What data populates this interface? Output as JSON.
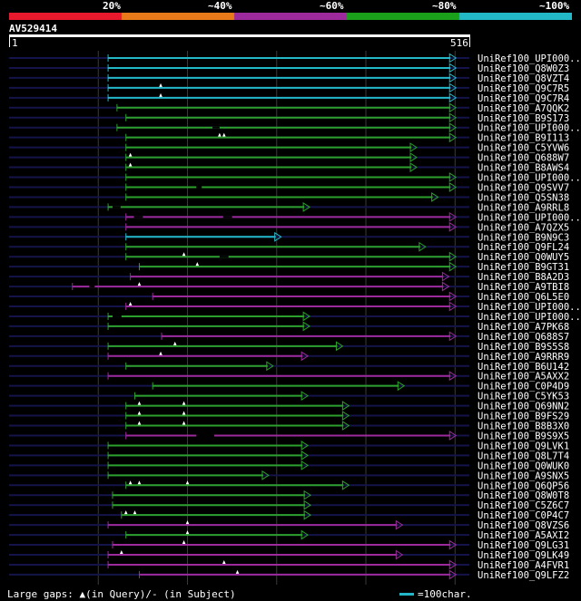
{
  "legend": {
    "colors": [
      "#e8192c",
      "#e87a1a",
      "#9c2a9c",
      "#1aa01a",
      "#22b8c8"
    ],
    "labels": [
      "20%",
      "~40%",
      "~60%",
      "~80%",
      "~100%"
    ]
  },
  "query": {
    "title": "AV529414",
    "start": "1",
    "end": "516",
    "length": 516
  },
  "colors": {
    "green": "#2ca02c",
    "purple": "#9c2a9c",
    "cyan": "#22b8c8",
    "bg_line": "#14144a"
  },
  "hits": [
    {
      "label": "UniRef100_UPI000..",
      "start": 111,
      "end": 501,
      "color": "cyan",
      "gaps": []
    },
    {
      "label": "UniRef100_Q8W0Z3",
      "start": 111,
      "end": 501,
      "color": "cyan",
      "gaps": []
    },
    {
      "label": "UniRef100_Q8VZT4",
      "start": 111,
      "end": 501,
      "color": "cyan",
      "gaps": []
    },
    {
      "label": "UniRef100_Q9C7R5",
      "start": 111,
      "end": 501,
      "color": "cyan",
      "gaps": [],
      "marks": [
        170
      ]
    },
    {
      "label": "UniRef100_Q9C7R4",
      "start": 111,
      "end": 501,
      "color": "cyan",
      "gaps": [],
      "marks": [
        170
      ]
    },
    {
      "label": "UniRef100_A7QQK2",
      "start": 121,
      "end": 501,
      "color": "green",
      "gaps": []
    },
    {
      "label": "UniRef100_B9S173",
      "start": 131,
      "end": 501,
      "color": "green",
      "gaps": []
    },
    {
      "label": "UniRef100_UPI000..",
      "start": 121,
      "end": 501,
      "color": "green",
      "gaps": [
        [
          228,
          236
        ]
      ]
    },
    {
      "label": "UniRef100_B9I113",
      "start": 131,
      "end": 501,
      "color": "green",
      "gaps": [],
      "marks": [
        236,
        241
      ]
    },
    {
      "label": "UniRef100_C5YVW6",
      "start": 131,
      "end": 457,
      "color": "green",
      "gaps": []
    },
    {
      "label": "UniRef100_Q688W7",
      "start": 131,
      "end": 457,
      "color": "green",
      "gaps": [],
      "marks": [
        136
      ]
    },
    {
      "label": "UniRef100_B8AWS4",
      "start": 131,
      "end": 457,
      "color": "green",
      "gaps": [],
      "marks": [
        136
      ]
    },
    {
      "label": "UniRef100_UPI000..",
      "start": 131,
      "end": 501,
      "color": "green",
      "gaps": []
    },
    {
      "label": "UniRef100_Q9SVV7",
      "start": 131,
      "end": 501,
      "color": "green",
      "gaps": [
        [
          210,
          216
        ]
      ]
    },
    {
      "label": "UniRef100_Q5SN38",
      "start": 131,
      "end": 481,
      "color": "green",
      "gaps": []
    },
    {
      "label": "UniRef100_A9RRL8",
      "start": 111,
      "end": 337,
      "color": "green",
      "gaps": [
        [
          116,
          125
        ]
      ]
    },
    {
      "label": "UniRef100_UPI000..",
      "start": 131,
      "end": 501,
      "color": "purple",
      "gaps": [
        [
          140,
          150
        ],
        [
          240,
          250
        ]
      ]
    },
    {
      "label": "UniRef100_A7QZX5",
      "start": 131,
      "end": 501,
      "color": "purple",
      "gaps": []
    },
    {
      "label": "UniRef100_B9N9C3",
      "start": 131,
      "end": 305,
      "color": "cyan",
      "gaps": []
    },
    {
      "label": "UniRef100_Q9FL24",
      "start": 131,
      "end": 467,
      "color": "green",
      "gaps": []
    },
    {
      "label": "UniRef100_Q0WUY5",
      "start": 131,
      "end": 501,
      "color": "green",
      "gaps": [
        [
          236,
          246
        ]
      ],
      "marks": [
        196
      ]
    },
    {
      "label": "UniRef100_B9GT31",
      "start": 146,
      "end": 501,
      "color": "green",
      "gaps": [],
      "marks": [
        211
      ]
    },
    {
      "label": "UniRef100_B8A2D3",
      "start": 136,
      "end": 493,
      "color": "purple",
      "gaps": []
    },
    {
      "label": "UniRef100_A9TBI8",
      "start": 71,
      "end": 493,
      "color": "purple",
      "gaps": [
        [
          90,
          96
        ]
      ],
      "marks": [
        146
      ]
    },
    {
      "label": "UniRef100_Q6L5E0",
      "start": 161,
      "end": 501,
      "color": "purple",
      "gaps": []
    },
    {
      "label": "UniRef100_UPI000..",
      "start": 131,
      "end": 501,
      "color": "purple",
      "gaps": [],
      "marks": [
        136
      ]
    },
    {
      "label": "UniRef100_UPI000..",
      "start": 111,
      "end": 337,
      "color": "green",
      "gaps": [
        [
          116,
          126
        ]
      ]
    },
    {
      "label": "UniRef100_A7PK68",
      "start": 111,
      "end": 337,
      "color": "green",
      "gaps": []
    },
    {
      "label": "UniRef100_Q688S7",
      "start": 171,
      "end": 501,
      "color": "purple",
      "gaps": []
    },
    {
      "label": "UniRef100_B9S5S8",
      "start": 111,
      "end": 374,
      "color": "green",
      "gaps": [],
      "marks": [
        186
      ]
    },
    {
      "label": "UniRef100_A9RRR9",
      "start": 111,
      "end": 335,
      "color": "purple",
      "gaps": [],
      "marks": [
        170
      ]
    },
    {
      "label": "UniRef100_B6U142",
      "start": 131,
      "end": 296,
      "color": "green",
      "gaps": []
    },
    {
      "label": "UniRef100_A5AXX2",
      "start": 111,
      "end": 501,
      "color": "purple",
      "gaps": []
    },
    {
      "label": "UniRef100_C0P4D9",
      "start": 161,
      "end": 443,
      "color": "green",
      "gaps": []
    },
    {
      "label": "UniRef100_C5YK53",
      "start": 141,
      "end": 335,
      "color": "green",
      "gaps": []
    },
    {
      "label": "UniRef100_Q69NN2",
      "start": 131,
      "end": 381,
      "color": "green",
      "gaps": [],
      "marks": [
        146,
        196
      ]
    },
    {
      "label": "UniRef100_B9FS29",
      "start": 131,
      "end": 381,
      "color": "green",
      "gaps": [],
      "marks": [
        146,
        196
      ]
    },
    {
      "label": "UniRef100_B8B3X0",
      "start": 131,
      "end": 381,
      "color": "green",
      "gaps": [],
      "marks": [
        146,
        196
      ]
    },
    {
      "label": "UniRef100_B9S9X5",
      "start": 131,
      "end": 501,
      "color": "purple",
      "gaps": [
        [
          210,
          230
        ]
      ]
    },
    {
      "label": "UniRef100_Q9LVK1",
      "start": 111,
      "end": 335,
      "color": "green",
      "gaps": []
    },
    {
      "label": "UniRef100_Q8L7T4",
      "start": 111,
      "end": 335,
      "color": "green",
      "gaps": []
    },
    {
      "label": "UniRef100_Q0WUK0",
      "start": 111,
      "end": 335,
      "color": "green",
      "gaps": []
    },
    {
      "label": "UniRef100_A9SNX5",
      "start": 111,
      "end": 291,
      "color": "green",
      "gaps": []
    },
    {
      "label": "UniRef100_Q6QP56",
      "start": 131,
      "end": 381,
      "color": "green",
      "gaps": [],
      "marks": [
        136,
        146,
        200
      ]
    },
    {
      "label": "UniRef100_Q8W0T8",
      "start": 116,
      "end": 338,
      "color": "green",
      "gaps": []
    },
    {
      "label": "UniRef100_C5Z6C7",
      "start": 116,
      "end": 338,
      "color": "green",
      "gaps": []
    },
    {
      "label": "UniRef100_C0P4C7",
      "start": 126,
      "end": 338,
      "color": "green",
      "gaps": [],
      "marks": [
        131,
        141
      ]
    },
    {
      "label": "UniRef100_Q8VZS6",
      "start": 111,
      "end": 441,
      "color": "purple",
      "gaps": [],
      "marks": [
        200
      ]
    },
    {
      "label": "UniRef100_A5AXI2",
      "start": 131,
      "end": 335,
      "color": "green",
      "gaps": [],
      "marks": [
        200
      ]
    },
    {
      "label": "UniRef100_Q9LG31",
      "start": 116,
      "end": 501,
      "color": "purple",
      "gaps": [],
      "marks": [
        196
      ]
    },
    {
      "label": "UniRef100_Q9LK49",
      "start": 111,
      "end": 441,
      "color": "purple",
      "gaps": [],
      "marks": [
        126
      ]
    },
    {
      "label": "UniRef100_A4FVR1",
      "start": 111,
      "end": 501,
      "color": "purple",
      "gaps": [],
      "marks": [
        241
      ]
    },
    {
      "label": "UniRef100_Q9LFZ2",
      "start": 146,
      "end": 501,
      "color": "purple",
      "gaps": [],
      "marks": [
        256
      ]
    }
  ],
  "footer": {
    "gaps_text": "Large gaps: ▲(in Query)/- (in Subject)",
    "scale_text": "=100char."
  }
}
